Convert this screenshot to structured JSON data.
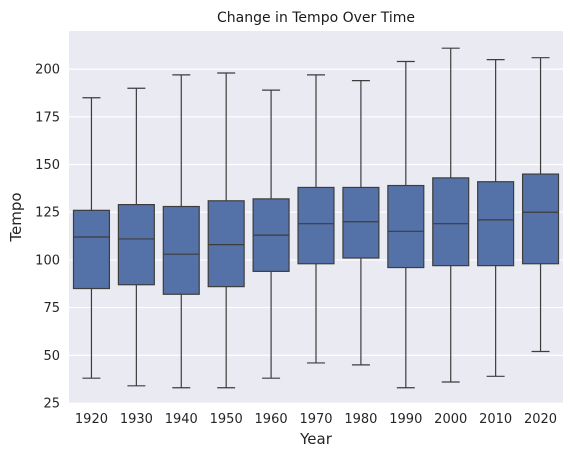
{
  "chart_data": {
    "type": "box",
    "title": "Change in Tempo Over Time",
    "xlabel": "Year",
    "ylabel": "Tempo",
    "ylim": [
      25,
      220
    ],
    "yticks": [
      25,
      50,
      75,
      100,
      125,
      150,
      175,
      200
    ],
    "grid": true,
    "colors": {
      "box_fill": "#5572a8",
      "box_line": "#3d3d3d",
      "background": "#eaeaf2",
      "grid": "#ffffff"
    },
    "categories": [
      "1920",
      "1930",
      "1940",
      "1950",
      "1960",
      "1970",
      "1980",
      "1990",
      "2000",
      "2010",
      "2020"
    ],
    "boxes": [
      {
        "whisker_low": 38,
        "q1": 85,
        "median": 112,
        "q3": 126,
        "whisker_high": 185
      },
      {
        "whisker_low": 34,
        "q1": 87,
        "median": 111,
        "q3": 129,
        "whisker_high": 190
      },
      {
        "whisker_low": 33,
        "q1": 82,
        "median": 103,
        "q3": 128,
        "whisker_high": 197
      },
      {
        "whisker_low": 33,
        "q1": 86,
        "median": 108,
        "q3": 131,
        "whisker_high": 198
      },
      {
        "whisker_low": 38,
        "q1": 94,
        "median": 113,
        "q3": 132,
        "whisker_high": 189
      },
      {
        "whisker_low": 46,
        "q1": 98,
        "median": 119,
        "q3": 138,
        "whisker_high": 197
      },
      {
        "whisker_low": 45,
        "q1": 101,
        "median": 120,
        "q3": 138,
        "whisker_high": 194
      },
      {
        "whisker_low": 33,
        "q1": 96,
        "median": 115,
        "q3": 139,
        "whisker_high": 204
      },
      {
        "whisker_low": 36,
        "q1": 97,
        "median": 119,
        "q3": 143,
        "whisker_high": 211
      },
      {
        "whisker_low": 39,
        "q1": 97,
        "median": 121,
        "q3": 141,
        "whisker_high": 205
      },
      {
        "whisker_low": 52,
        "q1": 98,
        "median": 125,
        "q3": 145,
        "whisker_high": 206
      }
    ]
  }
}
